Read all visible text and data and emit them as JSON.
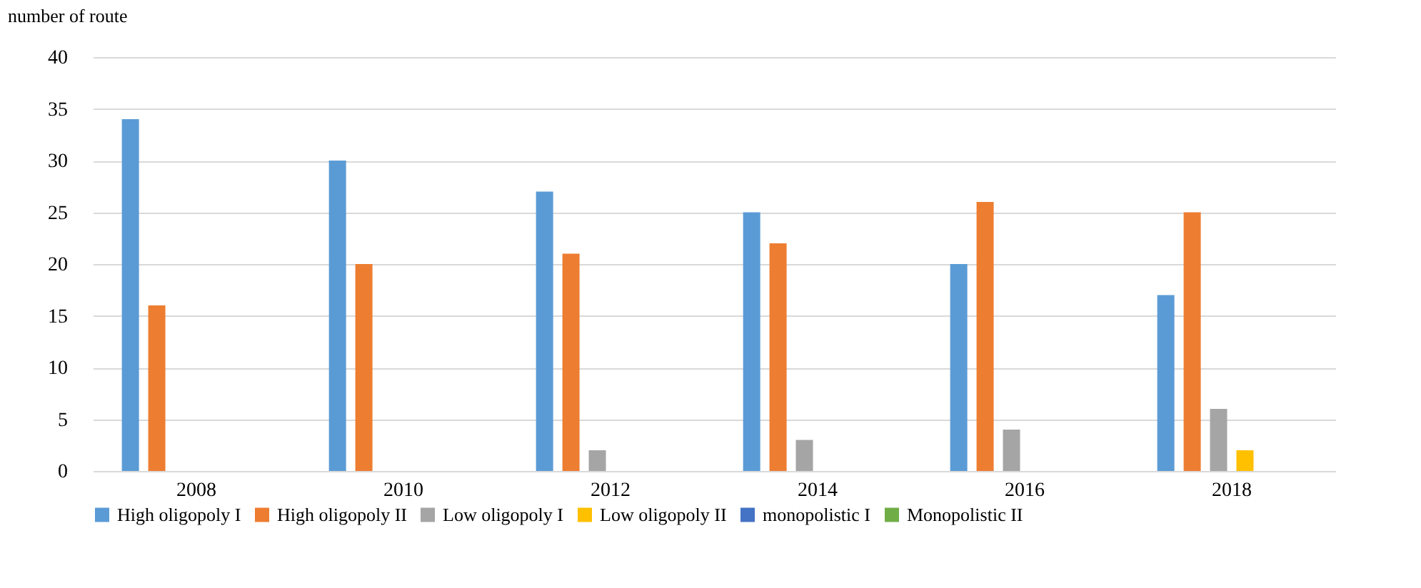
{
  "chart_data": {
    "type": "bar",
    "ylabel": "number of  route",
    "categories": [
      "2008",
      "2010",
      "2012",
      "2014",
      "2016",
      "2018"
    ],
    "series": [
      {
        "name": "High oligopoly I",
        "color": "#5b9bd5",
        "values": [
          34,
          30,
          27,
          25,
          20,
          17
        ]
      },
      {
        "name": "High oligopoly II",
        "color": "#ed7d31",
        "values": [
          16,
          20,
          21,
          22,
          26,
          25
        ]
      },
      {
        "name": "Low oligopoly I",
        "color": "#a5a5a5",
        "values": [
          0,
          0,
          2,
          3,
          4,
          6
        ]
      },
      {
        "name": "Low oligopoly II",
        "color": "#ffc000",
        "values": [
          0,
          0,
          0,
          0,
          0,
          2
        ]
      },
      {
        "name": "monopolistic I",
        "color": "#4472c4",
        "values": [
          0,
          0,
          0,
          0,
          0,
          0
        ]
      },
      {
        "name": "Monopolistic II",
        "color": "#70ad47",
        "values": [
          0,
          0,
          0,
          0,
          0,
          0
        ]
      }
    ],
    "ylim": [
      0,
      40
    ],
    "yticks": [
      0,
      5,
      10,
      15,
      20,
      25,
      30,
      35,
      40
    ],
    "grid": "y",
    "legend": "bottom"
  }
}
